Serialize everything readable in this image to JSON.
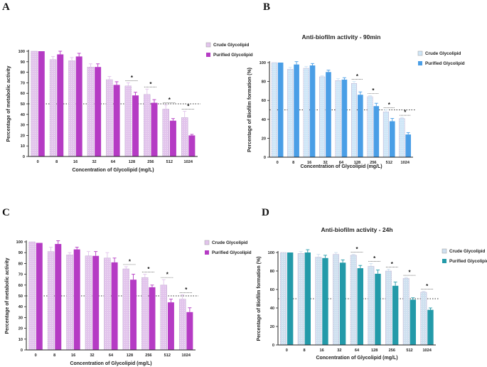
{
  "colors": {
    "purple_solid": "#b53bc4",
    "purple_light": "#e2c4ec",
    "blue_solid": "#4a9ee6",
    "blue_light": "#cfe6f7",
    "teal_solid": "#239aa9",
    "teal_light": "#cfe0ef",
    "axis": "#222222"
  },
  "chart_data": [
    {
      "panel": "A",
      "type": "bar",
      "title": "",
      "xlabel": "Concentration of Glycolipid (mg/L)",
      "ylabel": "Percentage of metabolic activity",
      "categories": [
        "0",
        "8",
        "16",
        "32",
        "64",
        "128",
        "256",
        "512",
        "1024"
      ],
      "ylim": [
        0,
        100
      ],
      "yticks": [
        "0",
        "10",
        "20",
        "30",
        "40",
        "50",
        "60",
        "70",
        "80",
        "90",
        "100"
      ],
      "reference_line": 50,
      "legend_position": "right",
      "series": [
        {
          "name": "Crude Glycolipid",
          "values": [
            100,
            92,
            91,
            85,
            73,
            67,
            59,
            45,
            37
          ],
          "errors": [
            0,
            3,
            3,
            3,
            3,
            3,
            5,
            4,
            6
          ]
        },
        {
          "name": "Purified Glycolipid",
          "values": [
            100,
            97,
            95,
            85,
            68,
            58,
            51,
            34,
            20
          ],
          "errors": [
            0,
            3,
            3,
            3,
            3,
            3,
            3,
            2,
            1
          ]
        }
      ],
      "significant": [
        "128",
        "256",
        "512",
        "1024"
      ]
    },
    {
      "panel": "B",
      "type": "bar",
      "title": "Anti-biofilm activity - 90min",
      "xlabel": "Concentration of Glycolipid (mg/L)",
      "ylabel": "Percentage of Biofilm formation (%)",
      "categories": [
        "0",
        "8",
        "16",
        "32",
        "64",
        "128",
        "256",
        "512",
        "1024"
      ],
      "ylim": [
        0,
        100
      ],
      "yticks": [
        "0",
        "20",
        "40",
        "60",
        "80",
        "100"
      ],
      "reference_line": 50,
      "legend_position": "right",
      "series": [
        {
          "name": "Crude Glycolipid",
          "values": [
            100,
            93,
            94,
            85,
            81,
            78,
            64,
            48,
            41
          ],
          "errors": [
            0,
            2,
            2,
            1,
            2,
            2,
            1,
            2,
            1
          ]
        },
        {
          "name": "Purified Glycolipid",
          "values": [
            100,
            98,
            97,
            90,
            82,
            66,
            54,
            38,
            24
          ],
          "errors": [
            0,
            3,
            2,
            2,
            2,
            3,
            3,
            3,
            2
          ]
        }
      ],
      "significant": [
        "128",
        "256",
        "512",
        "1024"
      ]
    },
    {
      "panel": "C",
      "type": "bar",
      "title": "",
      "xlabel": "Concentration of Glycolipid (mg/L)",
      "ylabel": "Percentage of metabolic activity",
      "categories": [
        "0",
        "8",
        "16",
        "32",
        "64",
        "128",
        "256",
        "512",
        "1024"
      ],
      "ylim": [
        0,
        100
      ],
      "yticks": [
        "0",
        "10",
        "20",
        "30",
        "40",
        "50",
        "60",
        "70",
        "80",
        "90",
        "100"
      ],
      "reference_line": 50,
      "legend_position": "right",
      "series": [
        {
          "name": "Crude Glycolipid",
          "values": [
            100,
            91,
            88,
            87,
            85,
            75,
            67,
            60,
            47
          ],
          "errors": [
            0,
            4,
            2,
            4,
            5,
            2,
            3,
            5,
            4
          ]
        },
        {
          "name": "Purified Glycolipid",
          "values": [
            99,
            98,
            93,
            87,
            81,
            65,
            58,
            44,
            35
          ],
          "errors": [
            0,
            3,
            2,
            4,
            4,
            5,
            2,
            3,
            4
          ]
        }
      ],
      "significant": [
        "128",
        "256",
        "512",
        "1024"
      ]
    },
    {
      "panel": "D",
      "type": "bar",
      "title": "Anti-biofilm activity - 24h",
      "xlabel": "Concentration of Glycolipid (mg/L)",
      "ylabel": "Percentage of Biofilm formation (%)",
      "categories": [
        "0",
        "8",
        "16",
        "32",
        "64",
        "128",
        "256",
        "512",
        "1024"
      ],
      "ylim": [
        0,
        100
      ],
      "yticks": [
        "0",
        "20",
        "40",
        "60",
        "80",
        "100"
      ],
      "reference_line": 50,
      "legend_position": "right",
      "series": [
        {
          "name": "Crude Glycolipid",
          "values": [
            100,
            99,
            95,
            98,
            97,
            85,
            80,
            72,
            57
          ],
          "errors": [
            0,
            2,
            3,
            2,
            1,
            3,
            2,
            1,
            1
          ]
        },
        {
          "name": "Purified Glycolipid",
          "values": [
            100,
            100,
            94,
            89,
            83,
            77,
            64,
            49,
            38
          ],
          "errors": [
            0,
            3,
            3,
            3,
            3,
            4,
            4,
            2,
            2
          ]
        }
      ],
      "significant": [
        "64",
        "128",
        "256",
        "512",
        "1024"
      ]
    }
  ]
}
